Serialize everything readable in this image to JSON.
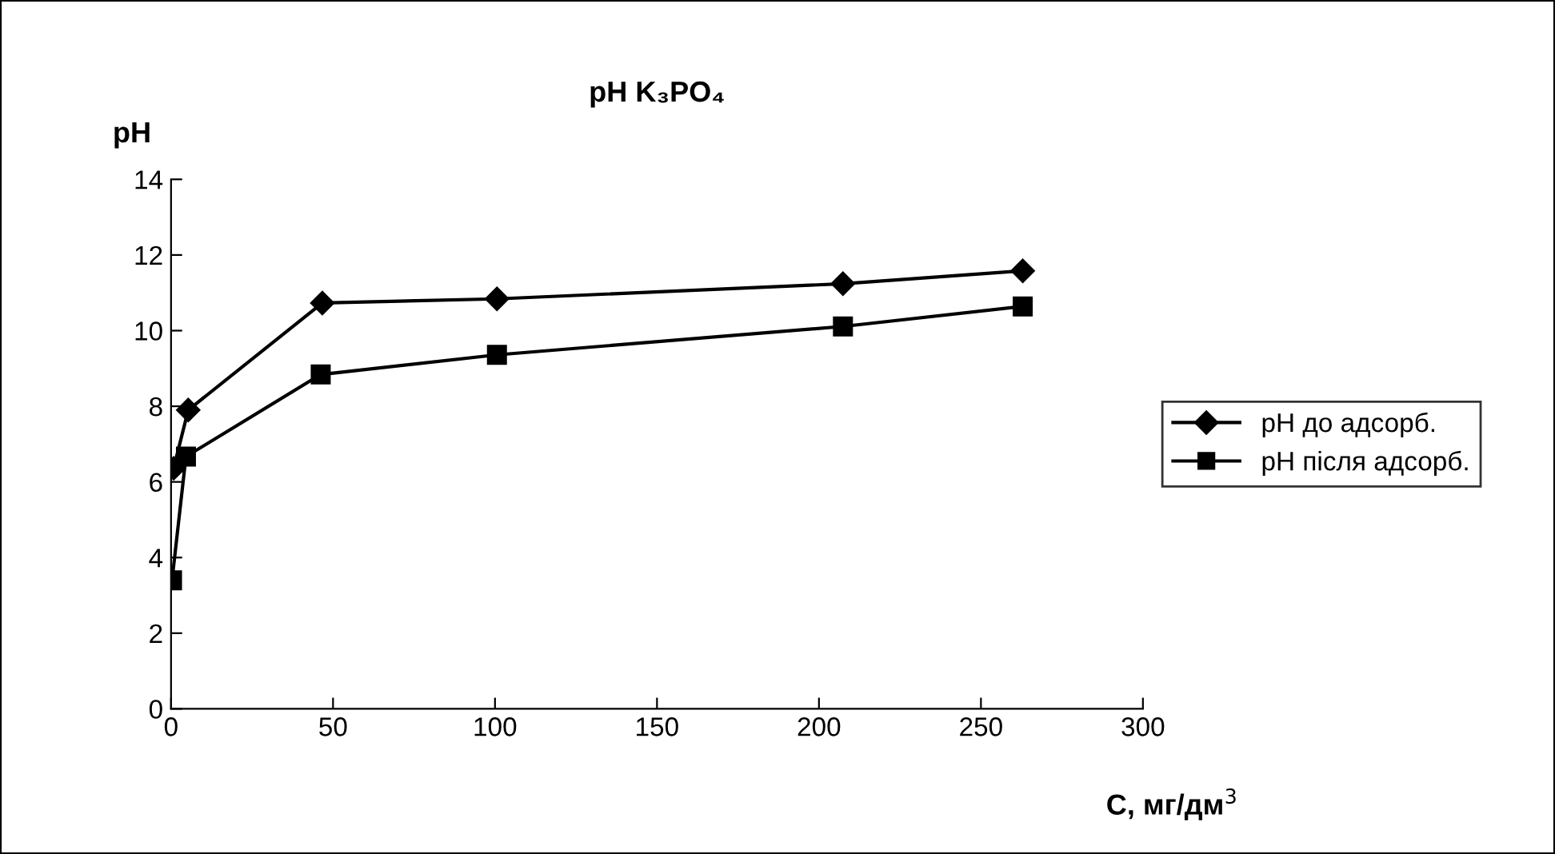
{
  "chart_data": {
    "type": "line",
    "title": "pH K₃PO₄",
    "xlabel": "C, мг/дм$^{3}$",
    "ylabel": "pH",
    "xlim": [
      0,
      300
    ],
    "xticks": [
      0,
      50,
      100,
      150,
      200,
      250,
      300
    ],
    "ylim": [
      0,
      14
    ],
    "yticks": [
      0,
      2,
      4,
      6,
      8,
      10,
      12,
      14
    ],
    "grid": false,
    "legend": "right",
    "line_style": "solid",
    "series": [
      {
        "name": "pH до адсорб.",
        "color": "#000000",
        "marker": "diamond",
        "x": [
          0.8,
          5.3,
          46.7,
          100.6,
          207.4,
          262.9
        ],
        "values": [
          6.36,
          7.9,
          10.73,
          10.84,
          11.24,
          11.58
        ]
      },
      {
        "name": "pH після адсорб.",
        "color": "#000000",
        "marker": "square",
        "x": [
          0.3,
          4.6,
          46.2,
          100.6,
          207.4,
          262.9
        ],
        "values": [
          3.4,
          6.67,
          8.84,
          9.36,
          10.11,
          10.64
        ]
      }
    ]
  }
}
